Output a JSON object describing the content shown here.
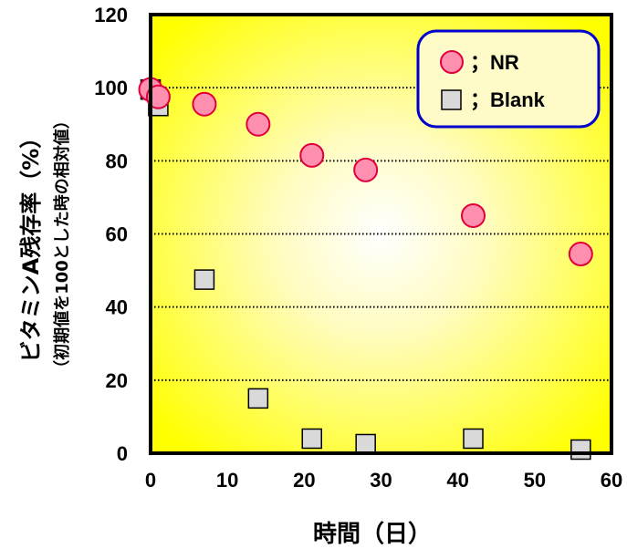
{
  "chart_data": {
    "type": "scatter",
    "xlabel": "時間（日）",
    "ylabel": "ビタミンA残存率（%）",
    "ylabel_sub": "（初期値を100とした時の相対値）",
    "xlim": [
      0,
      60
    ],
    "ylim": [
      0,
      120
    ],
    "xticks": [
      "0",
      "10",
      "20",
      "30",
      "40",
      "50",
      "60"
    ],
    "yticks": [
      "0",
      "20",
      "40",
      "60",
      "80",
      "100",
      "120"
    ],
    "grid": "horizontal dotted",
    "legend_position": "top-right",
    "series": [
      {
        "name": "NR",
        "legend_label": "；NR",
        "marker": "circle",
        "color": "#ff8fae",
        "edge_color": "#e0003c",
        "x": [
          0,
          1,
          7,
          14,
          21,
          28,
          42,
          56
        ],
        "y": [
          99.5,
          97.5,
          95.5,
          90,
          81.5,
          77.5,
          65,
          54.5
        ]
      },
      {
        "name": "Blank",
        "legend_label": "；Blank",
        "marker": "square",
        "color": "#d9d9d9",
        "edge_color": "#000000",
        "x": [
          0,
          1,
          7,
          14,
          21,
          28,
          42,
          56
        ],
        "y": [
          99.5,
          95,
          47.5,
          15,
          4,
          2.5,
          4,
          1
        ]
      }
    ]
  },
  "colors": {
    "plot_center": "#ffffff",
    "plot_edge": "#ffff00",
    "legend_bg": "#fffbc8",
    "legend_border": "#0000cc"
  }
}
